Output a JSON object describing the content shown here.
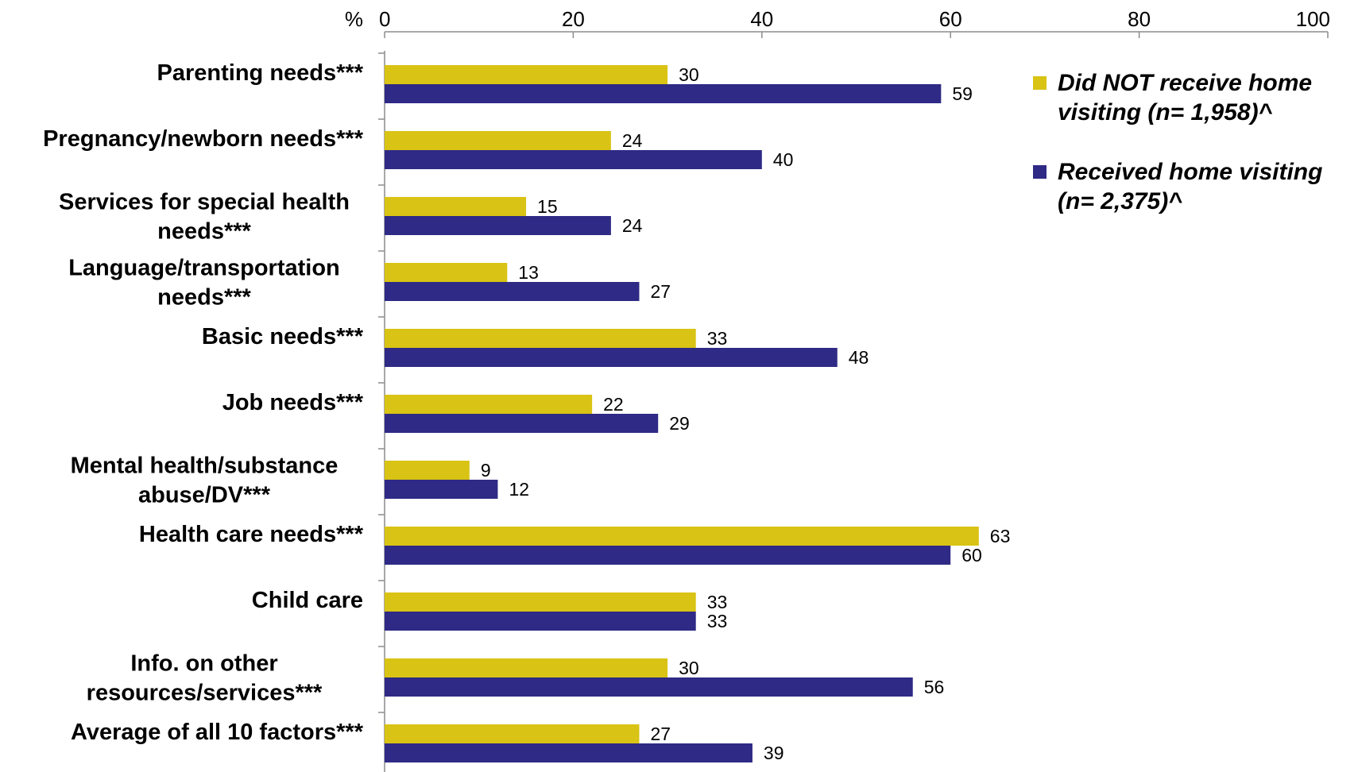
{
  "chart_data": {
    "type": "bar",
    "orientation": "horizontal",
    "axis_unit_label": "%",
    "xlim": [
      0,
      100
    ],
    "ticks": [
      "0",
      "20",
      "40",
      "60",
      "80",
      "100"
    ],
    "tick_values": [
      0,
      20,
      40,
      60,
      80,
      100
    ],
    "axis_position": "top",
    "grid": false,
    "legend_position": "top-right",
    "categories": [
      [
        "Parenting needs***"
      ],
      [
        "Pregnancy/newborn needs***"
      ],
      [
        "Services for special health",
        "needs***"
      ],
      [
        "Language/transportation",
        "needs***"
      ],
      [
        "Basic needs***"
      ],
      [
        "Job needs***"
      ],
      [
        "Mental health/substance",
        "abuse/DV***"
      ],
      [
        "Health care needs***"
      ],
      [
        "Child care"
      ],
      [
        "Info. on other",
        "resources/services***"
      ],
      [
        "Average of all 10 factors***"
      ]
    ],
    "series": [
      {
        "name": "Did NOT receive home visiting (n= 1,958)^",
        "legend_lines": [
          "Did NOT receive home",
          "visiting (n= 1,958)^"
        ],
        "color": "#D9C314",
        "values": [
          30,
          24,
          15,
          13,
          33,
          22,
          9,
          63,
          33,
          30,
          27
        ],
        "labels": [
          "30",
          "24",
          "15",
          "13",
          "33",
          "22",
          "9",
          "63",
          "33",
          "30",
          "27"
        ]
      },
      {
        "name": "Received home visiting (n= 2,375)^",
        "legend_lines": [
          "Received home visiting",
          "(n= 2,375)^"
        ],
        "color": "#2E2A85",
        "values": [
          59,
          40,
          24,
          27,
          48,
          29,
          12,
          60,
          33,
          56,
          39
        ],
        "labels": [
          "59",
          "40",
          "24",
          "27",
          "48",
          "29",
          "12",
          "60",
          "33",
          "56",
          "39"
        ]
      }
    ]
  }
}
